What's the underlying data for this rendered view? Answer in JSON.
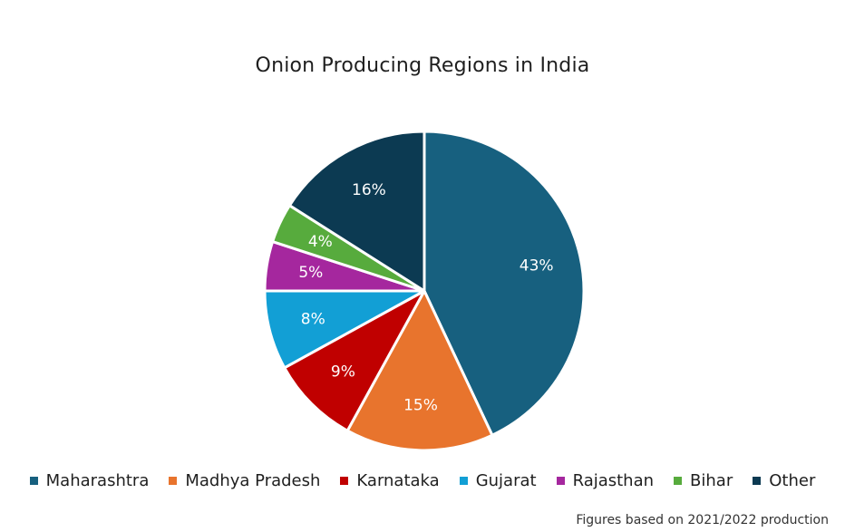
{
  "chart_data": {
    "type": "pie",
    "title": "Onion Producing Regions in India",
    "slices": [
      {
        "label": "Maharashtra",
        "value": 43,
        "display": "43%",
        "color": "#17607f"
      },
      {
        "label": "Madhya Pradesh",
        "value": 15,
        "display": "15%",
        "color": "#e8742d"
      },
      {
        "label": "Karnataka",
        "value": 9,
        "display": "9%",
        "color": "#c00000"
      },
      {
        "label": "Gujarat",
        "value": 8,
        "display": "8%",
        "color": "#129fd5"
      },
      {
        "label": "Rajasthan",
        "value": 5,
        "display": "5%",
        "color": "#a5279e"
      },
      {
        "label": "Bihar",
        "value": 4,
        "display": "4%",
        "color": "#57ab3d"
      },
      {
        "label": "Other",
        "value": 16,
        "display": "16%",
        "color": "#0c3a52"
      }
    ],
    "legend_position": "bottom",
    "footnote": "Figures based on 2021/2022 production"
  }
}
